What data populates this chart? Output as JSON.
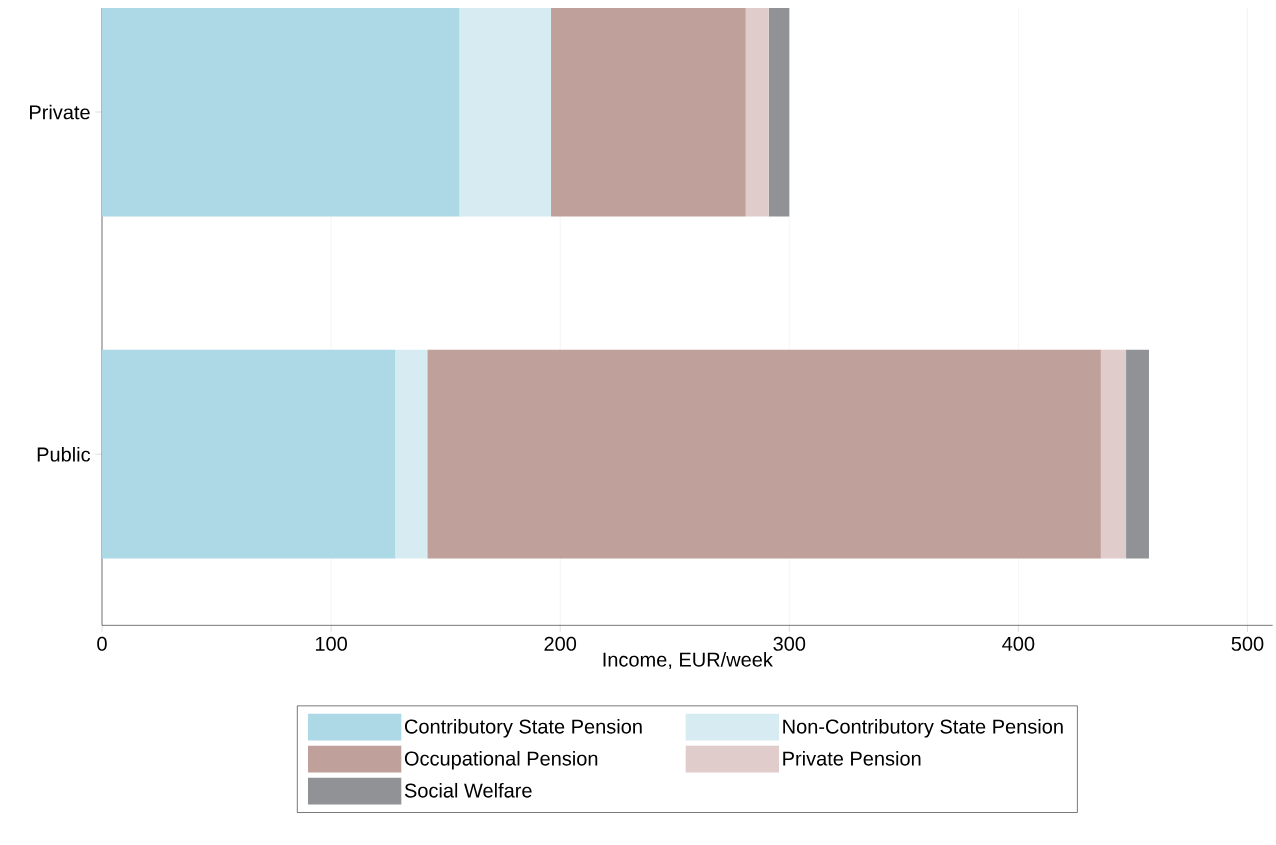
{
  "chart_data": {
    "type": "bar",
    "orientation": "horizontal",
    "stacked": true,
    "xlabel": "Income, EUR/week",
    "categories": [
      "Private",
      "Public"
    ],
    "series": [
      {
        "name": "Contributory State Pension",
        "color": "#add8e6",
        "values": [
          156,
          128
        ]
      },
      {
        "name": "Non-Contributory State Pension",
        "color": "#d6ebf2",
        "values": [
          40,
          14
        ]
      },
      {
        "name": "Occupational Pension",
        "color": "#c0a09a",
        "values": [
          85,
          294
        ]
      },
      {
        "name": "Private Pension",
        "color": "#e0cccb",
        "values": [
          10,
          11
        ]
      },
      {
        "name": "Social Welfare",
        "color": "#909296",
        "values": [
          9,
          10
        ]
      }
    ],
    "xlim": [
      0,
      511
    ],
    "xticks": [
      0,
      100,
      200,
      300,
      400,
      500
    ],
    "grid": "x",
    "legend": "bottom"
  }
}
